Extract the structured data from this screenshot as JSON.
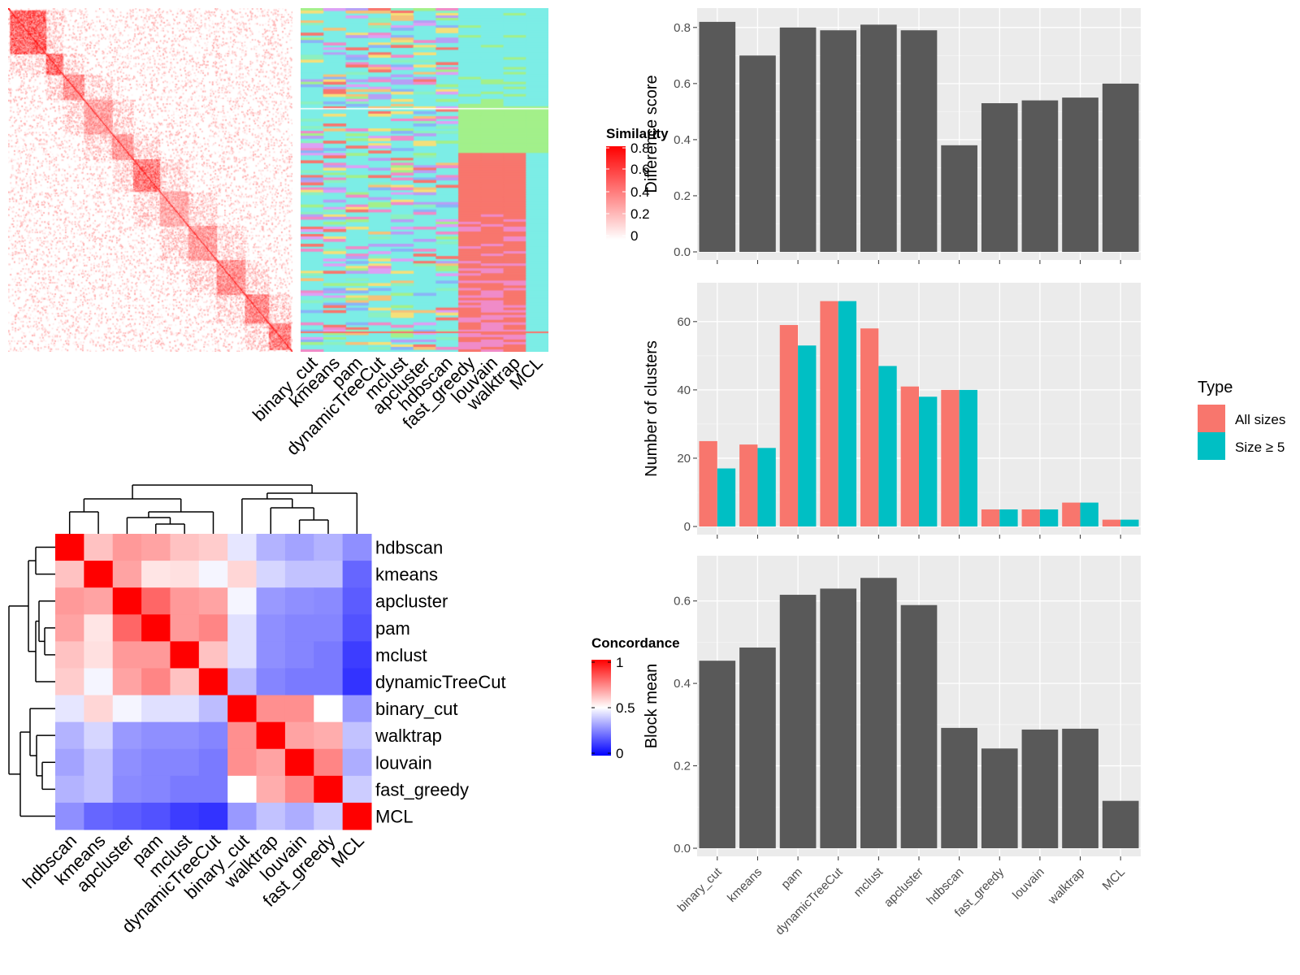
{
  "chart_data": [
    {
      "type": "heatmap",
      "legend_title": "Similarity",
      "legend_ticks": [
        "0.8",
        "0.6",
        "0.4",
        "0.2",
        "0"
      ],
      "colors": {
        "low": "#ffffff",
        "high": "#ff0000"
      },
      "size": 300,
      "blocks": [
        {
          "start": 2,
          "end": 40,
          "strength": 0.62
        },
        {
          "start": 40,
          "end": 58,
          "strength": 0.58
        },
        {
          "start": 58,
          "end": 80,
          "strength": 0.45
        },
        {
          "start": 80,
          "end": 110,
          "strength": 0.38
        },
        {
          "start": 110,
          "end": 132,
          "strength": 0.42
        },
        {
          "start": 132,
          "end": 160,
          "strength": 0.55
        },
        {
          "start": 160,
          "end": 190,
          "strength": 0.35
        },
        {
          "start": 190,
          "end": 220,
          "strength": 0.4
        },
        {
          "start": 220,
          "end": 250,
          "strength": 0.45
        },
        {
          "start": 250,
          "end": 275,
          "strength": 0.48
        },
        {
          "start": 275,
          "end": 298,
          "strength": 0.52
        }
      ]
    },
    {
      "type": "heatmap",
      "columns": [
        "binary_cut",
        "kmeans",
        "pam",
        "dynamicTreeCut",
        "mclust",
        "apcluster",
        "hdbscan",
        "fast_greedy",
        "louvain",
        "walktrap",
        "MCL"
      ],
      "palette": [
        "#7CEDE6",
        "#F8766D",
        "#A3F08A",
        "#DDA0F5",
        "#F08BC8",
        "#8AB4F8",
        "#F5E07A",
        "#B7A0F5",
        "#8CF0C0",
        "#F5C27A"
      ]
    },
    {
      "type": "heatmap",
      "legend_title": "Concordance",
      "legend_ticks": [
        "1",
        "0.5",
        "0"
      ],
      "colors": {
        "low": "#0000ff",
        "mid": "#ffffff",
        "high": "#ff0000"
      },
      "columns": [
        "hdbscan",
        "kmeans",
        "apcluster",
        "pam",
        "mclust",
        "dynamicTreeCut",
        "binary_cut",
        "walktrap",
        "louvain",
        "fast_greedy",
        "MCL"
      ],
      "rows": [
        "hdbscan",
        "kmeans",
        "apcluster",
        "pam",
        "mclust",
        "dynamicTreeCut",
        "binary_cut",
        "walktrap",
        "louvain",
        "fast_greedy",
        "MCL"
      ],
      "values": [
        [
          1.0,
          0.62,
          0.7,
          0.68,
          0.62,
          0.6,
          0.45,
          0.35,
          0.32,
          0.35,
          0.28
        ],
        [
          0.62,
          1.0,
          0.68,
          0.55,
          0.56,
          0.48,
          0.58,
          0.42,
          0.38,
          0.38,
          0.2
        ],
        [
          0.7,
          0.68,
          1.0,
          0.8,
          0.7,
          0.68,
          0.48,
          0.3,
          0.28,
          0.27,
          0.18
        ],
        [
          0.68,
          0.55,
          0.8,
          1.0,
          0.7,
          0.74,
          0.44,
          0.28,
          0.26,
          0.26,
          0.16
        ],
        [
          0.62,
          0.56,
          0.7,
          0.7,
          1.0,
          0.62,
          0.44,
          0.28,
          0.26,
          0.24,
          0.12
        ],
        [
          0.6,
          0.48,
          0.68,
          0.74,
          0.62,
          1.0,
          0.37,
          0.26,
          0.24,
          0.24,
          0.1
        ],
        [
          0.45,
          0.58,
          0.48,
          0.44,
          0.44,
          0.37,
          1.0,
          0.72,
          0.72,
          0.5,
          0.3
        ],
        [
          0.35,
          0.42,
          0.3,
          0.28,
          0.28,
          0.26,
          0.72,
          1.0,
          0.68,
          0.66,
          0.38
        ],
        [
          0.32,
          0.38,
          0.28,
          0.26,
          0.26,
          0.24,
          0.72,
          0.68,
          1.0,
          0.74,
          0.34
        ],
        [
          0.35,
          0.38,
          0.27,
          0.26,
          0.24,
          0.24,
          0.5,
          0.66,
          0.74,
          1.0,
          0.4
        ],
        [
          0.28,
          0.2,
          0.18,
          0.16,
          0.12,
          0.1,
          0.3,
          0.38,
          0.34,
          0.4,
          1.0
        ]
      ]
    },
    {
      "type": "bar",
      "categories": [
        "binary_cut",
        "kmeans",
        "pam",
        "dynamicTreeCut",
        "mclust",
        "apcluster",
        "hdbscan",
        "fast_greedy",
        "louvain",
        "walktrap",
        "MCL"
      ],
      "values": [
        0.82,
        0.7,
        0.8,
        0.79,
        0.81,
        0.79,
        0.38,
        0.53,
        0.54,
        0.55,
        0.6
      ],
      "ylabel": "Difference score",
      "ylim": [
        0,
        0.84
      ],
      "yticks": [
        "0.0",
        "0.2",
        "0.4",
        "0.6",
        "0.8"
      ],
      "bar_color": "#595959",
      "grid": true
    },
    {
      "type": "bar",
      "categories": [
        "binary_cut",
        "kmeans",
        "pam",
        "dynamicTreeCut",
        "mclust",
        "apcluster",
        "hdbscan",
        "fast_greedy",
        "louvain",
        "walktrap",
        "MCL"
      ],
      "series": [
        {
          "name": "All sizes",
          "color": "#F8766D",
          "values": [
            25,
            24,
            59,
            66,
            58,
            41,
            40,
            5,
            5,
            7,
            2
          ]
        },
        {
          "name": "Size ≥ 5",
          "color": "#00BFC4",
          "values": [
            17,
            23,
            53,
            66,
            47,
            38,
            40,
            5,
            5,
            7,
            2
          ]
        }
      ],
      "ylabel": "Number of clusters",
      "ylim": [
        0,
        69
      ],
      "yticks": [
        "0",
        "20",
        "40",
        "60"
      ],
      "legend_title": "Type",
      "legend_position": "right",
      "grid": true
    },
    {
      "type": "bar",
      "categories": [
        "binary_cut",
        "kmeans",
        "pam",
        "dynamicTreeCut",
        "mclust",
        "apcluster",
        "hdbscan",
        "fast_greedy",
        "louvain",
        "walktrap",
        "MCL"
      ],
      "values": [
        0.455,
        0.487,
        0.615,
        0.63,
        0.656,
        0.59,
        0.292,
        0.242,
        0.288,
        0.29,
        0.115
      ],
      "ylabel": "Block mean",
      "ylim": [
        0,
        0.69
      ],
      "yticks": [
        "0.0",
        "0.2",
        "0.4",
        "0.6"
      ],
      "bar_color": "#595959",
      "grid": true
    }
  ]
}
